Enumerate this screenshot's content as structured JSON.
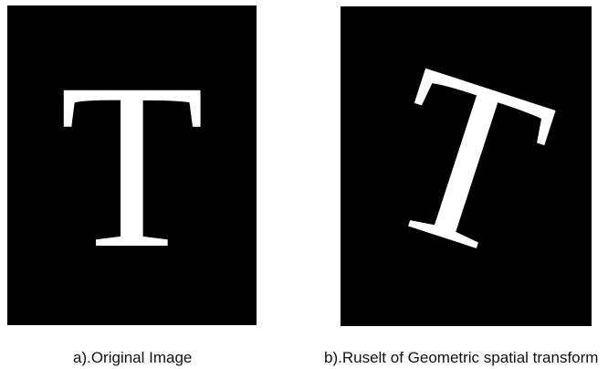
{
  "figure": {
    "panel_a": {
      "letter": "T",
      "caption": "a).Original Image"
    },
    "panel_b": {
      "letter": "T",
      "rotation_deg": 18,
      "caption": "b).Ruselt of Geometric spatial transform"
    },
    "colors": {
      "panel_background": "#000000",
      "letter": "#ffffff",
      "page_background": "#ffffff",
      "caption_text": "#111111"
    }
  }
}
